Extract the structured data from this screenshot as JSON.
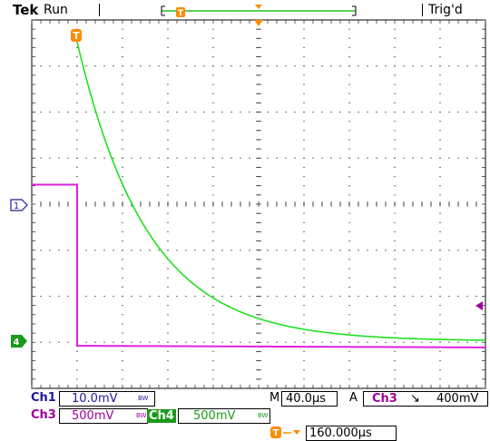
{
  "header": {
    "brand": "Tek",
    "run_state": "Run",
    "trigger_state": "Trig'd"
  },
  "markers": {
    "ch1": "1",
    "ch4": "4",
    "trigger": "T"
  },
  "readouts": {
    "ch1_label": "Ch1",
    "ch1_scale": "10.0mV",
    "ch3_label": "Ch3",
    "ch3_scale": "500mV",
    "ch4_label": "Ch4",
    "ch4_scale": "500mV",
    "bw_mark": "BW",
    "timebase_label": "M",
    "timebase": "40.0µs",
    "trigger_mode": "A",
    "trigger_source": "Ch3",
    "trigger_slope": "↘",
    "trigger_level": "400mV",
    "trigger_position": "160.000µs"
  },
  "colors": {
    "ch3": "#e020e0",
    "ch4": "#20e020",
    "trigger": "#ff8c00",
    "grid": "#000000"
  },
  "waveforms": {
    "ch3_high_div": 3.4,
    "ch3_low_div": -0.1,
    "ch3_edge_div": 1.0,
    "ch4_start_div": 6.5,
    "ch4_tau_div": 1.55
  }
}
